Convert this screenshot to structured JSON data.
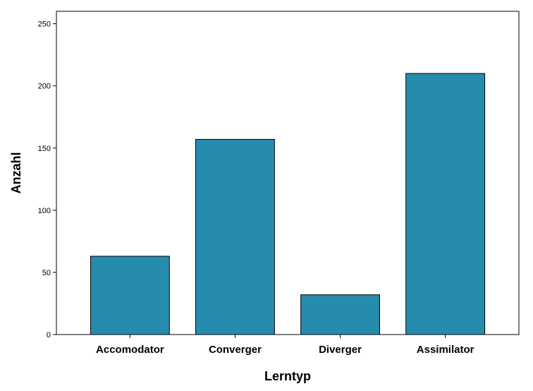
{
  "chart_data": {
    "type": "bar",
    "title": "",
    "xlabel": "Lerntyp",
    "ylabel": "Anzahl",
    "categories": [
      "Accomodator",
      "Converger",
      "Diverger",
      "Assimilator"
    ],
    "values": [
      63,
      157,
      32,
      210
    ],
    "ylim": [
      0,
      260
    ],
    "yticks": [
      0,
      50,
      100,
      150,
      200,
      250
    ],
    "grid": false,
    "legend": "none",
    "bar_color": "#268CAE"
  }
}
